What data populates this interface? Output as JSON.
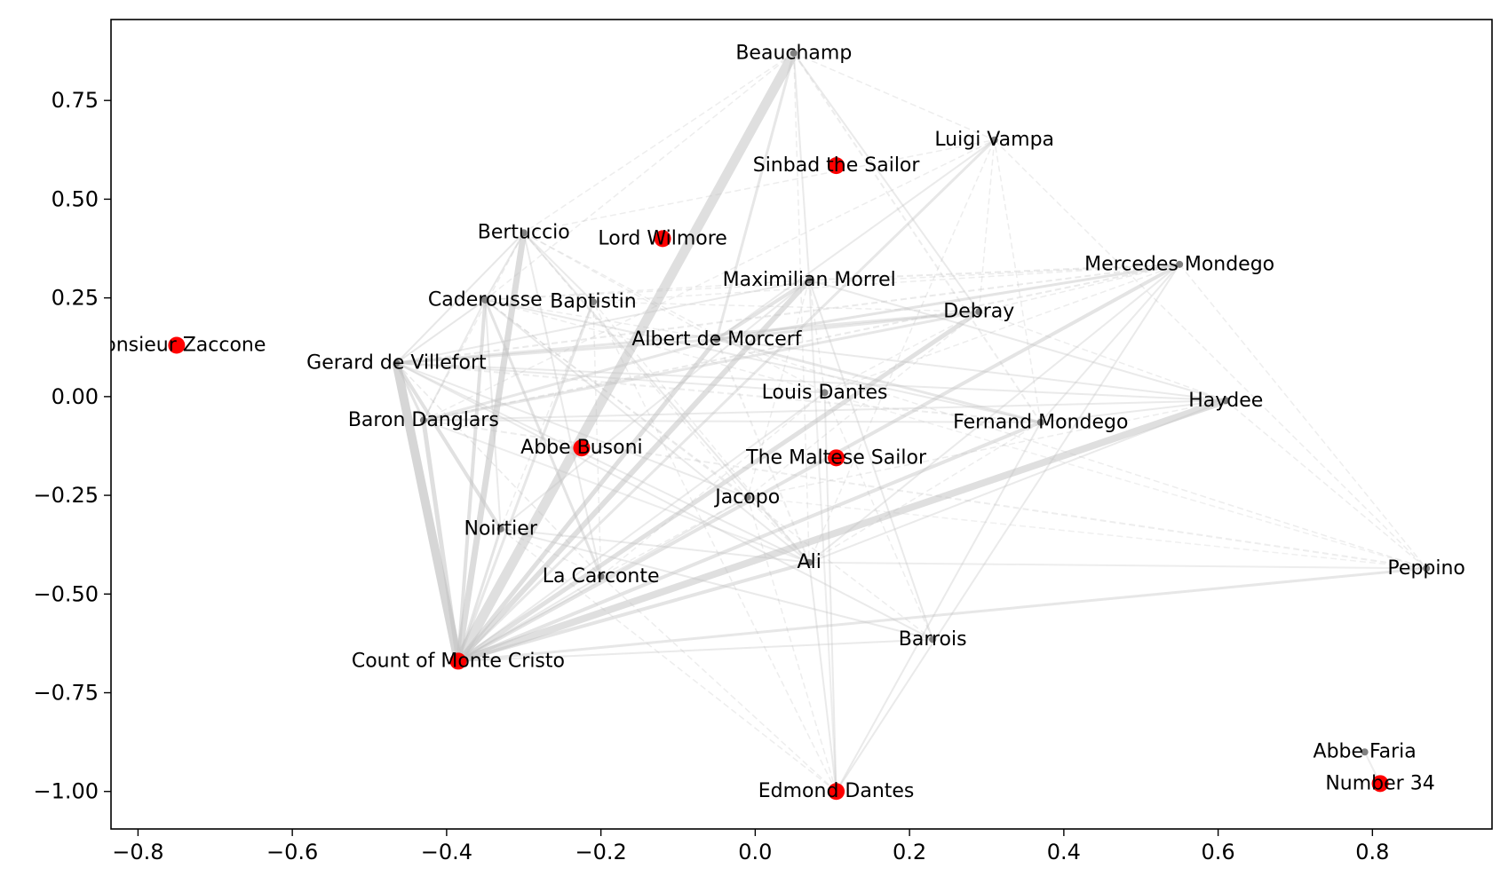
{
  "chart_data": {
    "type": "scatter",
    "title": "",
    "xlabel": "",
    "ylabel": "",
    "xlim": [
      -0.835,
      0.955
    ],
    "ylim": [
      -1.095,
      0.955
    ],
    "xticks": [
      -0.8,
      -0.6,
      -0.4,
      -0.2,
      0.0,
      0.2,
      0.4,
      0.6,
      0.8
    ],
    "yticks": [
      -1.0,
      -0.75,
      -0.5,
      -0.25,
      0.0,
      0.25,
      0.5,
      0.75
    ],
    "xtick_labels": [
      "−0.8",
      "−0.6",
      "−0.4",
      "−0.2",
      "0.0",
      "0.2",
      "0.4",
      "0.6",
      "0.8"
    ],
    "ytick_labels": [
      "−1.00",
      "−0.75",
      "−0.50",
      "−0.25",
      "0.00",
      "0.25",
      "0.50",
      "0.75"
    ],
    "grid": false,
    "colors": {
      "highlight": "#ff0000",
      "node": "#808080",
      "edge": "#c4c4c4"
    },
    "nodes": [
      {
        "name": "Beauchamp",
        "x": 0.05,
        "y": 0.87,
        "highlight": false
      },
      {
        "name": "Luigi Vampa",
        "x": 0.31,
        "y": 0.65,
        "highlight": false
      },
      {
        "name": "Sinbad the Sailor",
        "x": 0.105,
        "y": 0.585,
        "highlight": true
      },
      {
        "name": "Lord Wilmore",
        "x": -0.12,
        "y": 0.4,
        "highlight": true
      },
      {
        "name": "Bertuccio",
        "x": -0.3,
        "y": 0.415,
        "highlight": false
      },
      {
        "name": "Mercedes Mondego",
        "x": 0.55,
        "y": 0.335,
        "highlight": false
      },
      {
        "name": "Maximilian Morrel",
        "x": 0.07,
        "y": 0.295,
        "highlight": false
      },
      {
        "name": "Caderousse",
        "x": -0.35,
        "y": 0.245,
        "highlight": false
      },
      {
        "name": "Baptistin",
        "x": -0.21,
        "y": 0.24,
        "highlight": false
      },
      {
        "name": "Debray",
        "x": 0.29,
        "y": 0.215,
        "highlight": false
      },
      {
        "name": "Monsieur Zaccone",
        "x": -0.75,
        "y": 0.13,
        "highlight": true
      },
      {
        "name": "Albert de Morcerf",
        "x": -0.05,
        "y": 0.145,
        "highlight": false
      },
      {
        "name": "Gerard de Villefort",
        "x": -0.465,
        "y": 0.085,
        "highlight": false
      },
      {
        "name": "Louis Dantes",
        "x": 0.09,
        "y": 0.01,
        "highlight": false
      },
      {
        "name": "Haydee",
        "x": 0.61,
        "y": -0.01,
        "highlight": false
      },
      {
        "name": "Baron Danglars",
        "x": -0.43,
        "y": -0.06,
        "highlight": false
      },
      {
        "name": "Fernand Mondego",
        "x": 0.37,
        "y": -0.065,
        "highlight": false
      },
      {
        "name": "Abbe Busoni",
        "x": -0.225,
        "y": -0.13,
        "highlight": true
      },
      {
        "name": "The Maltese Sailor",
        "x": 0.105,
        "y": -0.155,
        "highlight": true
      },
      {
        "name": "Jacopo",
        "x": -0.01,
        "y": -0.255,
        "highlight": false
      },
      {
        "name": "Noirtier",
        "x": -0.33,
        "y": -0.335,
        "highlight": false
      },
      {
        "name": "Ali",
        "x": 0.07,
        "y": -0.42,
        "highlight": false
      },
      {
        "name": "La Carconte",
        "x": -0.2,
        "y": -0.455,
        "highlight": false
      },
      {
        "name": "Peppino",
        "x": 0.87,
        "y": -0.435,
        "highlight": false
      },
      {
        "name": "Barrois",
        "x": 0.23,
        "y": -0.615,
        "highlight": false
      },
      {
        "name": "Count of Monte Cristo",
        "x": -0.385,
        "y": -0.67,
        "highlight": true
      },
      {
        "name": "Abbe Faria",
        "x": 0.79,
        "y": -0.9,
        "highlight": false
      },
      {
        "name": "Number 34",
        "x": 0.81,
        "y": -0.98,
        "highlight": true
      },
      {
        "name": "Edmond Dantes",
        "x": 0.105,
        "y": -1.0,
        "highlight": true
      }
    ],
    "edges": [
      [
        "Count of Monte Cristo",
        "Beauchamp",
        11,
        "solid",
        0.55
      ],
      [
        "Count of Monte Cristo",
        "Gerard de Villefort",
        10,
        "solid",
        0.7
      ],
      [
        "Count of Monte Cristo",
        "Haydee",
        8,
        "solid",
        0.55
      ],
      [
        "Count of Monte Cristo",
        "Bertuccio",
        7,
        "solid",
        0.6
      ],
      [
        "Count of Monte Cristo",
        "Maximilian Morrel",
        6,
        "solid",
        0.55
      ],
      [
        "Count of Monte Cristo",
        "Debray",
        5,
        "solid",
        0.5
      ],
      [
        "Count of Monte Cristo",
        "Mercedes Mondego",
        4,
        "solid",
        0.45
      ],
      [
        "Count of Monte Cristo",
        "Caderousse",
        4,
        "solid",
        0.5
      ],
      [
        "Count of Monte Cristo",
        "Baron Danglars",
        5,
        "solid",
        0.55
      ],
      [
        "Count of Monte Cristo",
        "Albert de Morcerf",
        5,
        "solid",
        0.55
      ],
      [
        "Count of Monte Cristo",
        "Fernand Mondego",
        4,
        "solid",
        0.45
      ],
      [
        "Count of Monte Cristo",
        "Ali",
        4,
        "solid",
        0.45
      ],
      [
        "Count of Monte Cristo",
        "Peppino",
        3,
        "solid",
        0.4
      ],
      [
        "Count of Monte Cristo",
        "Noirtier",
        3,
        "solid",
        0.45
      ],
      [
        "Count of Monte Cristo",
        "Baptistin",
        3,
        "solid",
        0.4
      ],
      [
        "Count of Monte Cristo",
        "Luigi Vampa",
        3,
        "solid",
        0.4
      ],
      [
        "Count of Monte Cristo",
        "Jacopo",
        2,
        "solid",
        0.35
      ],
      [
        "Count of Monte Cristo",
        "La Carconte",
        2,
        "solid",
        0.35
      ],
      [
        "Count of Monte Cristo",
        "Louis Dantes",
        2,
        "solid",
        0.35
      ],
      [
        "Count of Monte Cristo",
        "Barrois",
        2,
        "solid",
        0.35
      ],
      [
        "Gerard de Villefort",
        "Noirtier",
        4,
        "solid",
        0.5
      ],
      [
        "Gerard de Villefort",
        "Baron Danglars",
        3,
        "solid",
        0.45
      ],
      [
        "Gerard de Villefort",
        "Albert de Morcerf",
        3,
        "solid",
        0.4
      ],
      [
        "Gerard de Villefort",
        "Debray",
        3,
        "solid",
        0.4
      ],
      [
        "Gerard de Villefort",
        "Caderousse",
        2,
        "solid",
        0.4
      ],
      [
        "Gerard de Villefort",
        "Bertuccio",
        2,
        "solid",
        0.4
      ],
      [
        "Gerard de Villefort",
        "Haydee",
        2,
        "solid",
        0.35
      ],
      [
        "Gerard de Villefort",
        "Louis Dantes",
        2,
        "solid",
        0.35
      ],
      [
        "Gerard de Villefort",
        "Ali",
        2,
        "solid",
        0.35
      ],
      [
        "Gerard de Villefort",
        "Mercedes Mondego",
        2,
        "dashed",
        0.35
      ],
      [
        "Gerard de Villefort",
        "Barrois",
        2,
        "solid",
        0.35
      ],
      [
        "Gerard de Villefort",
        "Jacopo",
        2,
        "solid",
        0.35
      ],
      [
        "Gerard de Villefort",
        "La Carconte",
        1.5,
        "dashed",
        0.35
      ],
      [
        "Gerard de Villefort",
        "Maximilian Morrel",
        2,
        "solid",
        0.35
      ],
      [
        "Gerard de Villefort",
        "Fernand Mondego",
        2,
        "dashed",
        0.3
      ],
      [
        "Baron Danglars",
        "Debray",
        3,
        "solid",
        0.4
      ],
      [
        "Baron Danglars",
        "Albert de Morcerf",
        3,
        "solid",
        0.4
      ],
      [
        "Baron Danglars",
        "Fernand Mondego",
        2,
        "solid",
        0.35
      ],
      [
        "Baron Danglars",
        "Mercedes Mondego",
        2,
        "dashed",
        0.35
      ],
      [
        "Baron Danglars",
        "Caderousse",
        2,
        "solid",
        0.35
      ],
      [
        "Baron Danglars",
        "Haydee",
        2,
        "solid",
        0.35
      ],
      [
        "Baron Danglars",
        "Ali",
        2,
        "solid",
        0.3
      ],
      [
        "Baron Danglars",
        "Peppino",
        2,
        "dashed",
        0.3
      ],
      [
        "Baron Danglars",
        "Luigi Vampa",
        1.5,
        "dashed",
        0.3
      ],
      [
        "Baron Danglars",
        "Bertuccio",
        1.5,
        "dashed",
        0.3
      ],
      [
        "Albert de Morcerf",
        "Maximilian Morrel",
        4,
        "solid",
        0.45
      ],
      [
        "Albert de Morcerf",
        "Mercedes Mondego",
        3,
        "solid",
        0.45
      ],
      [
        "Albert de Morcerf",
        "Fernand Mondego",
        3,
        "solid",
        0.4
      ],
      [
        "Albert de Morcerf",
        "Beauchamp",
        3,
        "solid",
        0.4
      ],
      [
        "Albert de Morcerf",
        "Debray",
        3,
        "solid",
        0.4
      ],
      [
        "Albert de Morcerf",
        "Luigi Vampa",
        2,
        "solid",
        0.35
      ],
      [
        "Albert de Morcerf",
        "Haydee",
        2,
        "solid",
        0.35
      ],
      [
        "Albert de Morcerf",
        "Ali",
        2,
        "dashed",
        0.3
      ],
      [
        "Albert de Morcerf",
        "Peppino",
        1.5,
        "dashed",
        0.3
      ],
      [
        "Albert de Morcerf",
        "Caderousse",
        1.5,
        "dashed",
        0.3
      ],
      [
        "Albert de Morcerf",
        "Bertuccio",
        1.5,
        "dashed",
        0.3
      ],
      [
        "Beauchamp",
        "Debray",
        2,
        "solid",
        0.35
      ],
      [
        "Beauchamp",
        "Maximilian Morrel",
        2,
        "solid",
        0.35
      ],
      [
        "Beauchamp",
        "Fernand Mondego",
        2,
        "dashed",
        0.3
      ],
      [
        "Beauchamp",
        "Bertuccio",
        1.5,
        "dashed",
        0.3
      ],
      [
        "Beauchamp",
        "Ali",
        1.5,
        "dashed",
        0.3
      ],
      [
        "Beauchamp",
        "Luigi Vampa",
        1.5,
        "dashed",
        0.3
      ],
      [
        "Beauchamp",
        "Caderousse",
        1.5,
        "dashed",
        0.3
      ],
      [
        "Maximilian Morrel",
        "Mercedes Mondego",
        2,
        "dashed",
        0.35
      ],
      [
        "Maximilian Morrel",
        "Haydee",
        2,
        "solid",
        0.35
      ],
      [
        "Maximilian Morrel",
        "Noirtier",
        2,
        "solid",
        0.35
      ],
      [
        "Maximilian Morrel",
        "Barrois",
        2,
        "solid",
        0.35
      ],
      [
        "Maximilian Morrel",
        "Edmond Dantes",
        2,
        "solid",
        0.3
      ],
      [
        "Maximilian Morrel",
        "Louis Dantes",
        1.5,
        "dashed",
        0.3
      ],
      [
        "Maximilian Morrel",
        "Caderousse",
        1.5,
        "dashed",
        0.3
      ],
      [
        "Maximilian Morrel",
        "Jacopo",
        1.5,
        "dashed",
        0.3
      ],
      [
        "Mercedes Mondego",
        "Edmond Dantes",
        2,
        "solid",
        0.35
      ],
      [
        "Mercedes Mondego",
        "Fernand Mondego",
        2,
        "solid",
        0.35
      ],
      [
        "Mercedes Mondego",
        "Ali",
        2,
        "solid",
        0.35
      ],
      [
        "Mercedes Mondego",
        "Debray",
        1.5,
        "dashed",
        0.3
      ],
      [
        "Mercedes Mondego",
        "Louis Dantes",
        1.5,
        "dashed",
        0.3
      ],
      [
        "Mercedes Mondego",
        "Caderousse",
        1.5,
        "dashed",
        0.3
      ],
      [
        "Mercedes Mondego",
        "Baptistin",
        1.5,
        "dashed",
        0.3
      ],
      [
        "Mercedes Mondego",
        "Peppino",
        1.5,
        "dashed",
        0.3
      ],
      [
        "Fernand Mondego",
        "Edmond Dantes",
        2,
        "solid",
        0.35
      ],
      [
        "Fernand Mondego",
        "Haydee",
        2,
        "solid",
        0.35
      ],
      [
        "Fernand Mondego",
        "Caderousse",
        2,
        "solid",
        0.35
      ],
      [
        "Fernand Mondego",
        "Ali",
        1.5,
        "dashed",
        0.3
      ],
      [
        "Fernand Mondego",
        "Luigi Vampa",
        1.5,
        "dashed",
        0.3
      ],
      [
        "Caderousse",
        "La Carconte",
        3,
        "solid",
        0.45
      ],
      [
        "Caderousse",
        "Bertuccio",
        2,
        "solid",
        0.4
      ],
      [
        "Caderousse",
        "Noirtier",
        2,
        "solid",
        0.35
      ],
      [
        "Caderousse",
        "Ali",
        2,
        "solid",
        0.35
      ],
      [
        "Caderousse",
        "Jacopo",
        1.5,
        "dashed",
        0.3
      ],
      [
        "Caderousse",
        "Louis Dantes",
        1.5,
        "dashed",
        0.3
      ],
      [
        "Caderousse",
        "Barrois",
        1.5,
        "dashed",
        0.3
      ],
      [
        "Bertuccio",
        "La Carconte",
        2,
        "solid",
        0.35
      ],
      [
        "Bertuccio",
        "Ali",
        2,
        "solid",
        0.35
      ],
      [
        "Bertuccio",
        "Baptistin",
        2,
        "solid",
        0.35
      ],
      [
        "Bertuccio",
        "Louis Dantes",
        1.5,
        "dashed",
        0.3
      ],
      [
        "Bertuccio",
        "Luigi Vampa",
        1.5,
        "dashed",
        0.3
      ],
      [
        "Bertuccio",
        "Jacopo",
        1.5,
        "dashed",
        0.3
      ],
      [
        "Haydee",
        "Ali",
        2,
        "solid",
        0.35
      ],
      [
        "Haydee",
        "Peppino",
        1.5,
        "dashed",
        0.3
      ],
      [
        "Haydee",
        "Debray",
        1.5,
        "dashed",
        0.3
      ],
      [
        "Haydee",
        "Jacopo",
        1.5,
        "dashed",
        0.3
      ],
      [
        "Luigi Vampa",
        "Peppino",
        1.5,
        "dashed",
        0.3
      ],
      [
        "Luigi Vampa",
        "Ali",
        1.5,
        "dashed",
        0.3
      ],
      [
        "Luigi Vampa",
        "Debray",
        1.5,
        "dashed",
        0.3
      ],
      [
        "Ali",
        "Peppino",
        2,
        "solid",
        0.3
      ],
      [
        "Ali",
        "Edmond Dantes",
        2,
        "solid",
        0.35
      ],
      [
        "Ali",
        "Jacopo",
        1.5,
        "dashed",
        0.3
      ],
      [
        "Ali",
        "Noirtier",
        2,
        "solid",
        0.35
      ],
      [
        "Ali",
        "Baptistin",
        1.5,
        "dashed",
        0.3
      ],
      [
        "Noirtier",
        "Barrois",
        2,
        "solid",
        0.35
      ],
      [
        "Noirtier",
        "La Carconte",
        1.5,
        "dashed",
        0.3
      ],
      [
        "Barrois",
        "Louis Dantes",
        1.5,
        "dashed",
        0.3
      ],
      [
        "Edmond Dantes",
        "Louis Dantes",
        2,
        "solid",
        0.35
      ],
      [
        "Edmond Dantes",
        "Jacopo",
        1.5,
        "dashed",
        0.3
      ],
      [
        "Edmond Dantes",
        "Noirtier",
        1.5,
        "dashed",
        0.3
      ],
      [
        "Edmond Dantes",
        "La Carconte",
        1.5,
        "dashed",
        0.3
      ],
      [
        "Edmond Dantes",
        "Baptistin",
        1.5,
        "dashed",
        0.3
      ],
      [
        "Debray",
        "Jacopo",
        1.5,
        "dashed",
        0.3
      ],
      [
        "Debray",
        "Louis Dantes",
        1.5,
        "dashed",
        0.3
      ],
      [
        "Debray",
        "Baptistin",
        1.5,
        "dashed",
        0.3
      ],
      [
        "Jacopo",
        "Peppino",
        1.5,
        "dashed",
        0.25
      ],
      [
        "Jacopo",
        "La Carconte",
        1.5,
        "dashed",
        0.3
      ],
      [
        "Louis Dantes",
        "La Carconte",
        1.5,
        "dashed",
        0.3
      ],
      [
        "Louis Dantes",
        "Peppino",
        1.5,
        "dashed",
        0.25
      ],
      [
        "Baptistin",
        "La Carconte",
        1.5,
        "dashed",
        0.3
      ],
      [
        "Baptistin",
        "Noirtier",
        1.5,
        "dashed",
        0.3
      ],
      [
        "Abbe Faria",
        "Number 34",
        2,
        "solid",
        0.3
      ]
    ]
  }
}
